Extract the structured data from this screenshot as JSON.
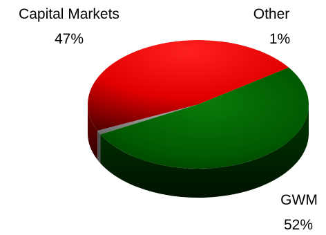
{
  "chart_data": {
    "type": "pie",
    "style": "3d",
    "labels": [
      "Capital Markets",
      "Other",
      "GWM"
    ],
    "values": [
      47,
      1,
      52
    ],
    "value_labels": [
      "47%",
      "1%",
      "52%"
    ],
    "colors": [
      "#ff0000",
      "#808080",
      "#006400"
    ],
    "title": "",
    "legend": "none"
  }
}
